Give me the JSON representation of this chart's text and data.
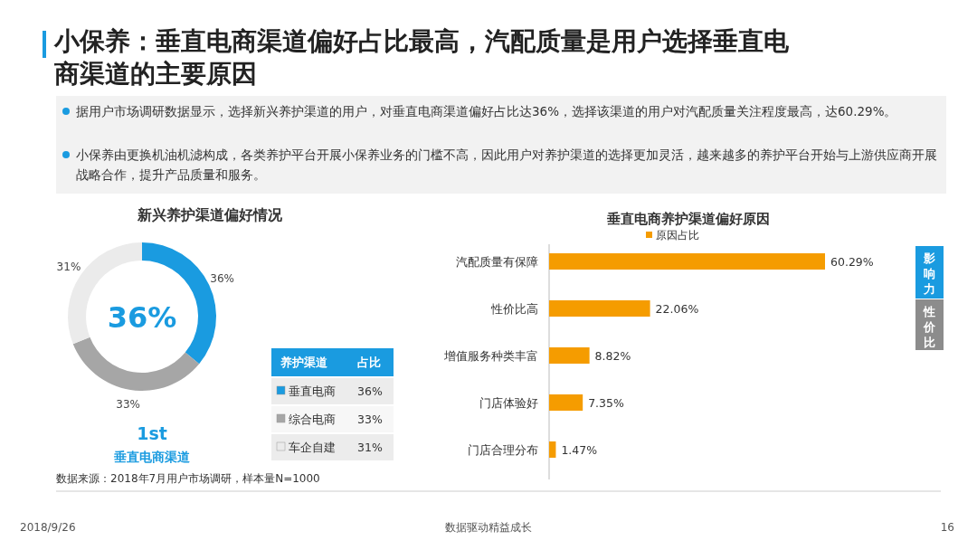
{
  "chart_data": [
    {
      "type": "donut",
      "title": "新兴养护渠道偏好情况",
      "categories": [
        "垂直电商",
        "综合电商",
        "车企自建"
      ],
      "values": [
        36,
        33,
        31
      ],
      "colors": [
        "#1a9be0",
        "#a6a6a6",
        "#ebebeb"
      ],
      "value_labels": [
        "36%",
        "33%",
        "31%"
      ],
      "legend_title": "养护渠道",
      "legend": "bottom right",
      "annotations": [
        "小保养：垂直电商渠道偏好占比最高，汽配质量是用户选择垂直电商渠道的主要原因",
        "据用户市场调研数据显示，选择新兴养护渠道的用户，对垂直电商渠道偏好占比达36%，选择该渠道的用户对汽配质量关注程度最高，达60.29%。",
        "小保养由更换机油机滤构成，各类养护平台开展小保养业务的门槛不高，因此用户对养护渠道的选择更加灵活，越来越多的养护平台开始与上游供应商开展战略合作，提升产品质量和服务。",
        "36%",
        "占比",
        "1st",
        "垂直电商渠道",
        "数据来源：2018年7月用户市场调研，样本量N=1000",
        "2018/9/26",
        "数据驱动精益成长",
        "16"
      ]
    },
    {
      "type": "bar",
      "orientation": "horizontal",
      "title": "垂直电商养护渠道偏好原因",
      "categories": [
        "汽配质量有保障",
        "性价比高",
        "增值服务种类丰富",
        "门店体验好",
        "门店合理分布"
      ],
      "series": [
        {
          "name": "原因占比",
          "color": "#f59c00",
          "values": [
            60.29,
            22.06,
            8.82,
            7.35,
            1.47
          ],
          "value_labels": [
            "60.29%",
            "22.06%",
            "8.82%",
            "7.35%",
            "1.47%"
          ]
        }
      ],
      "xlim": [
        0,
        60.29
      ],
      "legend": "top",
      "annotations": [
        "影响力",
        "性价比"
      ]
    }
  ]
}
